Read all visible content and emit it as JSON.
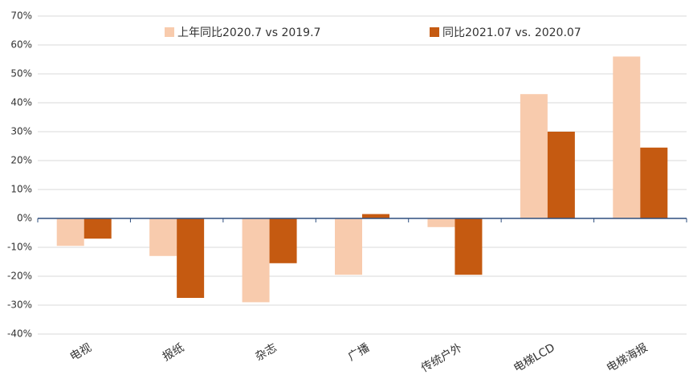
{
  "chart_data": {
    "type": "bar",
    "categories": [
      "电视",
      "报纸",
      "杂志",
      "广播",
      "传统户外",
      "电梯LCD",
      "电梯海报"
    ],
    "series": [
      {
        "name": "上年同比2020.7 vs 2019.7",
        "color": "#f8cbad",
        "values": [
          -9.5,
          -13,
          -29,
          -19.5,
          -3,
          43,
          56
        ]
      },
      {
        "name": "同比2021.07 vs. 2020.07",
        "color": "#c55a11",
        "values": [
          -7,
          -27.5,
          -15.5,
          1.5,
          -19.5,
          30,
          24.5
        ]
      }
    ],
    "ylim": [
      -40,
      70
    ],
    "yticks": [
      {
        "value": -40,
        "label": "-40%"
      },
      {
        "value": -30,
        "label": "-30%"
      },
      {
        "value": -20,
        "label": "-20%"
      },
      {
        "value": -10,
        "label": "-10%"
      },
      {
        "value": 0,
        "label": "0%"
      },
      {
        "value": 10,
        "label": "10%"
      },
      {
        "value": 20,
        "label": "20%"
      },
      {
        "value": 30,
        "label": "30%"
      },
      {
        "value": 40,
        "label": "40%"
      },
      {
        "value": 50,
        "label": "50%"
      },
      {
        "value": 60,
        "label": "60%"
      },
      {
        "value": 70,
        "label": "70%"
      }
    ],
    "grid": true,
    "legend": "top"
  }
}
